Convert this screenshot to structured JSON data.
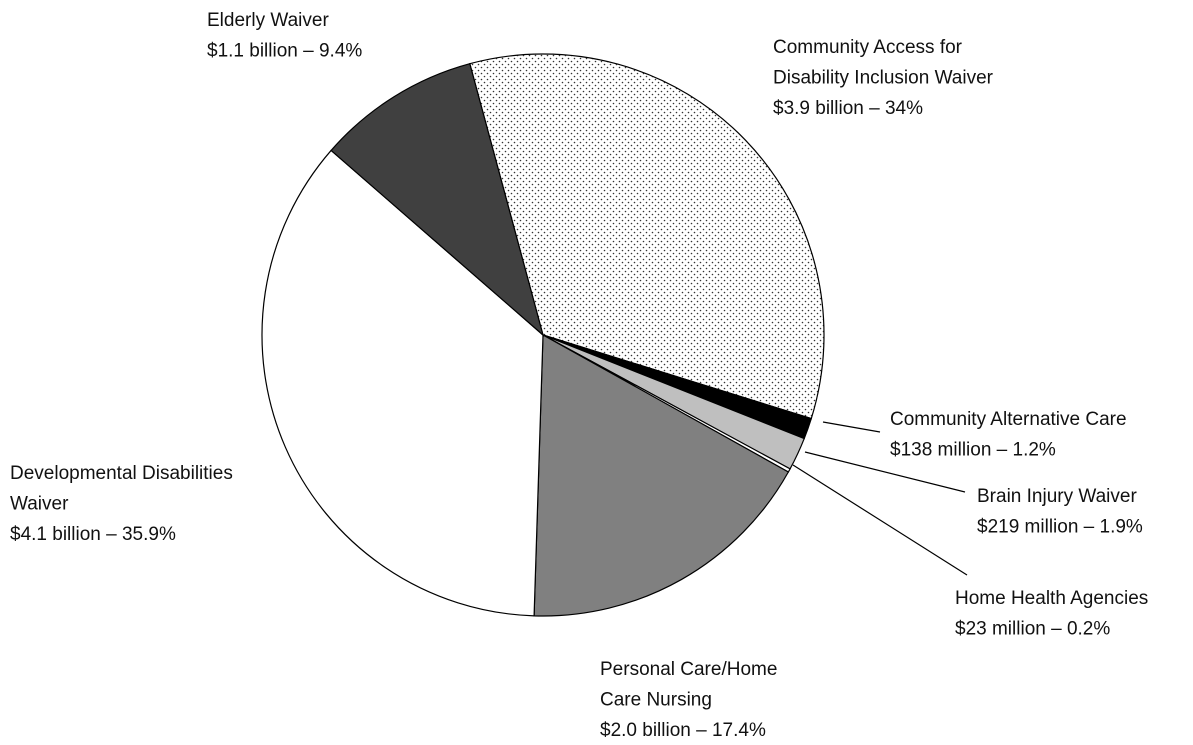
{
  "chart_data": {
    "type": "pie",
    "categories": [
      "Community Access for Disability Inclusion Waiver",
      "Community Alternative Care",
      "Brain Injury Waiver",
      "Home Health Agencies",
      "Personal Care/Home Care Nursing",
      "Developmental Disabilities Waiver",
      "Elderly Waiver"
    ],
    "values": [
      34,
      1.2,
      1.9,
      0.2,
      17.4,
      35.9,
      9.4
    ],
    "value_labels": [
      "$3.9 billion – 34%",
      "$138 million – 1.2%",
      "$219 million – 1.9%",
      "$23 million – 0.2%",
      "$2.0 billion – 17.4%",
      "$4.1 billion – 35.9%",
      "$1.1 billion – 9.4%"
    ],
    "colors": [
      "#ffffff",
      "#000000",
      "#bfbfbf",
      "#ffffff",
      "#808080",
      "#ffffff",
      "#404040"
    ],
    "dotted": [
      true,
      false,
      false,
      false,
      false,
      false,
      false
    ]
  }
}
